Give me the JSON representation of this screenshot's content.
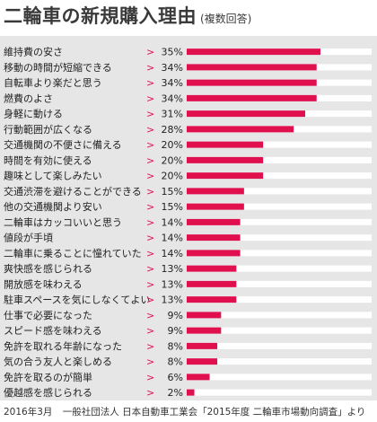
{
  "header": {
    "title": "二輪車の新規購入理由",
    "subtitle": "(複数回答)"
  },
  "footer": {
    "date": "2016年3月",
    "source": "一般社団法人 日本自動車工業会「2015年度 二輪車市場動向調査」より"
  },
  "colors": {
    "bar": "#e0104f",
    "track": "#ffffff",
    "panel": "#e6e6e6",
    "marker": "#e0104f",
    "label": "#222222"
  },
  "chart_data": {
    "type": "bar",
    "orientation": "horizontal",
    "title": "二輪車の新規購入理由",
    "subtitle": "(複数回答)",
    "unit": "%",
    "xlim": [
      0,
      100
    ],
    "grid": false,
    "categories": [
      "維持費の安さ",
      "移動の時間が短縮できる",
      "自転車より楽だと思う",
      "燃費のよさ",
      "身軽に動ける",
      "行動範囲が広くなる",
      "交通機関の不便さに備える",
      "時間を有効に使える",
      "趣味として楽しみたい",
      "交通渋滞を避けることができる",
      "他の交通機関より安い",
      "二輪車はカッコいいと思う",
      "値段が手頃",
      "二輪車に乗ることに憧れていた",
      "爽快感を感じられる",
      "開放感を味わえる",
      "駐車スペースを気にしなくてよい",
      "仕事で必要になった",
      "スピード感を味わえる",
      "免許を取れる年齢になった",
      "気の合う友人と楽しめる",
      "免許を取るのが簡単",
      "優越感を感じられる"
    ],
    "values": [
      35,
      34,
      34,
      34,
      31,
      28,
      20,
      20,
      20,
      15,
      15,
      14,
      14,
      14,
      13,
      13,
      13,
      9,
      9,
      8,
      8,
      6,
      2
    ]
  }
}
